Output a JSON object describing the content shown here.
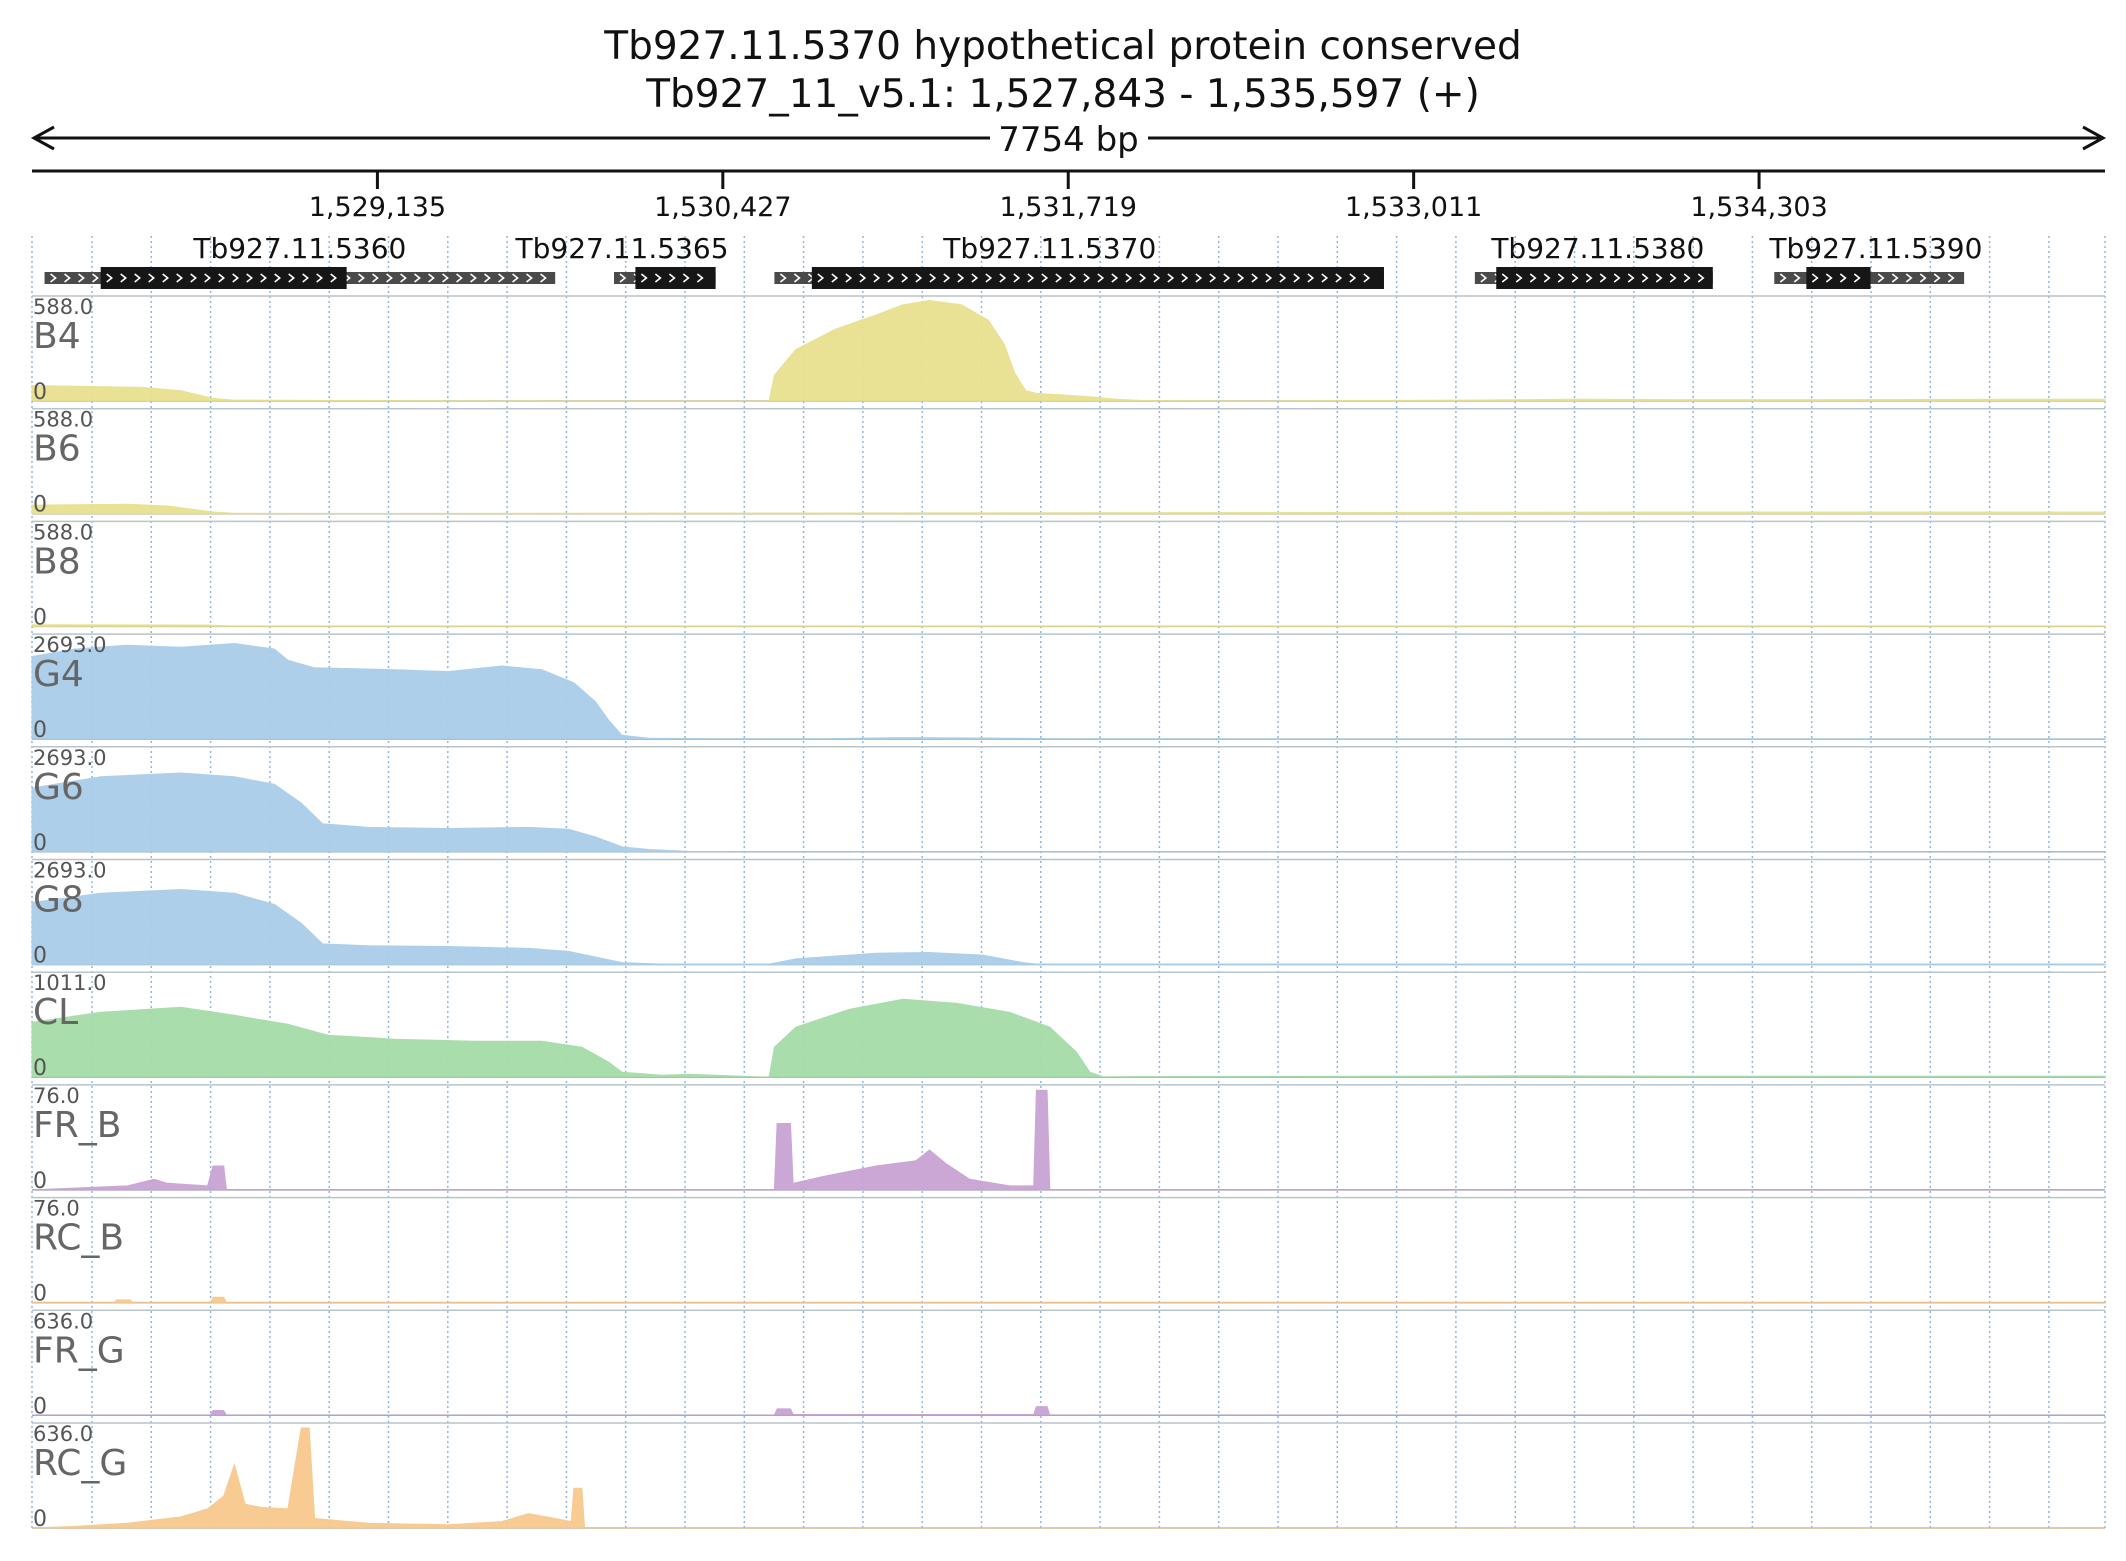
{
  "header": {
    "title_line1": "Tb927.11.5370  hypothetical protein  conserved",
    "title_line2": "Tb927_11_v5.1: 1,527,843 - 1,535,597 (+)",
    "span_label": "7754 bp"
  },
  "chart_data": {
    "type": "area",
    "region": {
      "chromosome": "Tb927_11_v5.1",
      "start": 1527843,
      "end": 1535597,
      "strand": "+"
    },
    "x_ticks": [
      {
        "pos": 1529135,
        "label": "1,529,135"
      },
      {
        "pos": 1530427,
        "label": "1,530,427"
      },
      {
        "pos": 1531719,
        "label": "1,531,719"
      },
      {
        "pos": 1533011,
        "label": "1,533,011"
      },
      {
        "pos": 1534303,
        "label": "1,534,303"
      }
    ],
    "genes": [
      {
        "name": "Tb927.11.5360",
        "utr_start": 1527890,
        "utr_end": 1529800,
        "cds_start": 1528100,
        "cds_end": 1529020,
        "label_pos": 1528845
      },
      {
        "name": "Tb927.11.5365",
        "utr_start": 1530020,
        "utr_end": 1530400,
        "cds_start": 1530100,
        "cds_end": 1530400,
        "label_pos": 1530050
      },
      {
        "name": "Tb927.11.5370",
        "utr_start": 1530620,
        "utr_end": 1532900,
        "cds_start": 1530760,
        "cds_end": 1532900,
        "label_pos": 1531650
      },
      {
        "name": "Tb927.11.5380",
        "utr_start": 1533240,
        "utr_end": 1534130,
        "cds_start": 1533320,
        "cds_end": 1534130,
        "label_pos": 1533700
      },
      {
        "name": "Tb927.11.5390",
        "utr_start": 1534360,
        "utr_end": 1535070,
        "cds_start": 1534480,
        "cds_end": 1534720,
        "label_pos": 1534740
      }
    ],
    "tracks": [
      {
        "name": "B4",
        "ymax": 588.0,
        "ymax_label": "588.0",
        "ymin_label": "0",
        "color": "#e8e08e",
        "points": [
          [
            1527843,
            90
          ],
          [
            1528250,
            80
          ],
          [
            1528400,
            60
          ],
          [
            1528520,
            15
          ],
          [
            1528600,
            5
          ],
          [
            1529000,
            3
          ],
          [
            1530000,
            0
          ],
          [
            1530600,
            0
          ],
          [
            1530620,
            150
          ],
          [
            1530700,
            300
          ],
          [
            1530850,
            420
          ],
          [
            1531000,
            500
          ],
          [
            1531100,
            560
          ],
          [
            1531200,
            585
          ],
          [
            1531320,
            560
          ],
          [
            1531420,
            470
          ],
          [
            1531480,
            330
          ],
          [
            1531520,
            160
          ],
          [
            1531560,
            60
          ],
          [
            1531600,
            45
          ],
          [
            1531800,
            25
          ],
          [
            1531900,
            10
          ],
          [
            1532000,
            3
          ],
          [
            1532400,
            0
          ],
          [
            1533200,
            5
          ],
          [
            1533600,
            10
          ],
          [
            1534000,
            8
          ],
          [
            1534500,
            8
          ],
          [
            1535300,
            10
          ],
          [
            1535597,
            10
          ]
        ]
      },
      {
        "name": "B6",
        "ymax": 588.0,
        "ymax_label": "588.0",
        "ymin_label": "0",
        "color": "#e8e08e",
        "points": [
          [
            1527843,
            50
          ],
          [
            1528200,
            55
          ],
          [
            1528350,
            45
          ],
          [
            1528520,
            10
          ],
          [
            1528600,
            3
          ],
          [
            1529000,
            2
          ],
          [
            1533200,
            8
          ],
          [
            1534000,
            10
          ],
          [
            1535000,
            10
          ],
          [
            1535597,
            10
          ]
        ]
      },
      {
        "name": "B8",
        "ymax": 588.0,
        "ymax_label": "588.0",
        "ymin_label": "0",
        "color": "#e8e08e",
        "points": [
          [
            1527843,
            10
          ],
          [
            1528500,
            8
          ],
          [
            1528600,
            2
          ],
          [
            1535597,
            2
          ]
        ]
      },
      {
        "name": "G4",
        "ymax": 2693.0,
        "ymax_label": "2693.0",
        "ymin_label": "0",
        "color": "#a9cde9",
        "points": [
          [
            1527843,
            2200
          ],
          [
            1528000,
            2400
          ],
          [
            1528200,
            2500
          ],
          [
            1528400,
            2450
          ],
          [
            1528600,
            2550
          ],
          [
            1528750,
            2400
          ],
          [
            1528800,
            2100
          ],
          [
            1528900,
            1900
          ],
          [
            1529200,
            1850
          ],
          [
            1529400,
            1800
          ],
          [
            1529600,
            1950
          ],
          [
            1529750,
            1850
          ],
          [
            1529870,
            1500
          ],
          [
            1529950,
            1000
          ],
          [
            1530000,
            500
          ],
          [
            1530050,
            100
          ],
          [
            1530150,
            20
          ],
          [
            1530400,
            10
          ],
          [
            1530800,
            10
          ],
          [
            1531100,
            40
          ],
          [
            1531400,
            30
          ],
          [
            1531700,
            10
          ],
          [
            1532500,
            5
          ],
          [
            1535597,
            5
          ]
        ]
      },
      {
        "name": "G6",
        "ymax": 2693.0,
        "ymax_label": "2693.0",
        "ymin_label": "0",
        "color": "#a9cde9",
        "points": [
          [
            1527843,
            1700
          ],
          [
            1528100,
            2000
          ],
          [
            1528400,
            2100
          ],
          [
            1528600,
            2000
          ],
          [
            1528750,
            1800
          ],
          [
            1528850,
            1300
          ],
          [
            1528930,
            750
          ],
          [
            1529100,
            650
          ],
          [
            1529400,
            620
          ],
          [
            1529700,
            650
          ],
          [
            1529850,
            600
          ],
          [
            1529950,
            400
          ],
          [
            1530050,
            130
          ],
          [
            1530150,
            60
          ],
          [
            1530300,
            10
          ],
          [
            1530500,
            5
          ],
          [
            1535597,
            3
          ]
        ]
      },
      {
        "name": "G8",
        "ymax": 2693.0,
        "ymax_label": "2693.0",
        "ymin_label": "0",
        "color": "#a9cde9",
        "points": [
          [
            1527843,
            1650
          ],
          [
            1528100,
            1900
          ],
          [
            1528400,
            2000
          ],
          [
            1528600,
            1900
          ],
          [
            1528750,
            1600
          ],
          [
            1528850,
            1100
          ],
          [
            1528930,
            550
          ],
          [
            1529100,
            500
          ],
          [
            1529400,
            480
          ],
          [
            1529700,
            430
          ],
          [
            1529850,
            350
          ],
          [
            1529950,
            200
          ],
          [
            1530050,
            50
          ],
          [
            1530200,
            10
          ],
          [
            1530600,
            10
          ],
          [
            1530700,
            150
          ],
          [
            1531000,
            300
          ],
          [
            1531200,
            320
          ],
          [
            1531400,
            250
          ],
          [
            1531550,
            50
          ],
          [
            1531600,
            10
          ],
          [
            1534500,
            10
          ],
          [
            1535597,
            10
          ]
        ]
      },
      {
        "name": "CL",
        "ymax": 1011.0,
        "ymax_label": "1011.0",
        "ymin_label": "0",
        "color": "#a6dca8",
        "points": [
          [
            1527843,
            550
          ],
          [
            1528100,
            650
          ],
          [
            1528400,
            700
          ],
          [
            1528600,
            620
          ],
          [
            1528800,
            530
          ],
          [
            1528950,
            420
          ],
          [
            1529200,
            380
          ],
          [
            1529500,
            360
          ],
          [
            1529750,
            360
          ],
          [
            1529900,
            300
          ],
          [
            1530000,
            150
          ],
          [
            1530050,
            50
          ],
          [
            1530200,
            20
          ],
          [
            1530300,
            30
          ],
          [
            1530400,
            20
          ],
          [
            1530600,
            0
          ],
          [
            1530620,
            300
          ],
          [
            1530700,
            500
          ],
          [
            1530900,
            680
          ],
          [
            1531100,
            780
          ],
          [
            1531300,
            740
          ],
          [
            1531500,
            650
          ],
          [
            1531650,
            500
          ],
          [
            1531750,
            250
          ],
          [
            1531800,
            50
          ],
          [
            1531850,
            5
          ],
          [
            1533000,
            10
          ],
          [
            1533500,
            15
          ],
          [
            1534000,
            10
          ],
          [
            1535597,
            10
          ]
        ]
      },
      {
        "name": "FR_B",
        "ymax": 76.0,
        "ymax_label": "76.0",
        "ymin_label": "0",
        "color": "#c9a3d4",
        "points": [
          [
            1527843,
            0
          ],
          [
            1528200,
            3
          ],
          [
            1528300,
            8
          ],
          [
            1528350,
            5
          ],
          [
            1528500,
            3
          ],
          [
            1528520,
            18
          ],
          [
            1528560,
            18
          ],
          [
            1528570,
            0
          ],
          [
            1530620,
            0
          ],
          [
            1530630,
            50
          ],
          [
            1530680,
            50
          ],
          [
            1530690,
            5
          ],
          [
            1530800,
            10
          ],
          [
            1531000,
            18
          ],
          [
            1531150,
            22
          ],
          [
            1531200,
            30
          ],
          [
            1531260,
            20
          ],
          [
            1531350,
            8
          ],
          [
            1531500,
            3
          ],
          [
            1531590,
            3
          ],
          [
            1531600,
            75
          ],
          [
            1531640,
            75
          ],
          [
            1531650,
            0
          ],
          [
            1535597,
            0
          ]
        ]
      },
      {
        "name": "RC_B",
        "ymax": 76.0,
        "ymax_label": "76.0",
        "ymin_label": "0",
        "color": "#f8c98e",
        "points": [
          [
            1527843,
            0
          ],
          [
            1528150,
            0
          ],
          [
            1528160,
            2
          ],
          [
            1528210,
            2
          ],
          [
            1528220,
            0
          ],
          [
            1528510,
            0
          ],
          [
            1528520,
            4
          ],
          [
            1528560,
            4
          ],
          [
            1528570,
            0
          ],
          [
            1535597,
            0
          ]
        ]
      },
      {
        "name": "FR_G",
        "ymax": 636.0,
        "ymax_label": "636.0",
        "ymin_label": "0",
        "color": "#c9a3d4",
        "points": [
          [
            1527843,
            0
          ],
          [
            1528510,
            0
          ],
          [
            1528520,
            30
          ],
          [
            1528560,
            30
          ],
          [
            1528570,
            0
          ],
          [
            1530620,
            0
          ],
          [
            1530630,
            40
          ],
          [
            1530680,
            40
          ],
          [
            1530690,
            5
          ],
          [
            1531590,
            5
          ],
          [
            1531600,
            55
          ],
          [
            1531640,
            55
          ],
          [
            1531650,
            0
          ],
          [
            1535597,
            0
          ]
        ]
      },
      {
        "name": "RC_G",
        "ymax": 636.0,
        "ymax_label": "636.0",
        "ymin_label": "0",
        "color": "#f8c98e",
        "points": [
          [
            1527843,
            0
          ],
          [
            1528000,
            10
          ],
          [
            1528200,
            30
          ],
          [
            1528400,
            70
          ],
          [
            1528500,
            120
          ],
          [
            1528560,
            200
          ],
          [
            1528600,
            400
          ],
          [
            1528640,
            150
          ],
          [
            1528700,
            130
          ],
          [
            1528800,
            120
          ],
          [
            1528850,
            630
          ],
          [
            1528880,
            630
          ],
          [
            1528900,
            60
          ],
          [
            1529100,
            30
          ],
          [
            1529400,
            20
          ],
          [
            1529600,
            40
          ],
          [
            1529700,
            90
          ],
          [
            1529800,
            60
          ],
          [
            1529860,
            40
          ],
          [
            1529870,
            250
          ],
          [
            1529900,
            250
          ],
          [
            1529910,
            0
          ],
          [
            1535597,
            0
          ]
        ]
      }
    ]
  }
}
